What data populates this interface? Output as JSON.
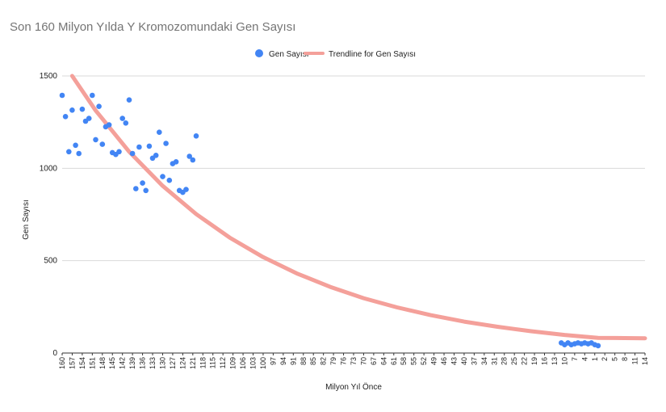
{
  "chart_data": {
    "type": "scatter",
    "title": "Son 160 Milyon Yılda Y Kromozomundaki Gen Sayısı",
    "xlabel": "Milyon Yıl Önce",
    "ylabel": "Gen Sayısı",
    "ylim": [
      0,
      1500
    ],
    "yticks": [
      "0",
      "500",
      "1000",
      "1500"
    ],
    "grid": true,
    "legend_position": "top",
    "x_ticks": [
      "160",
      "157",
      "154",
      "151",
      "148",
      "145",
      "142",
      "139",
      "136",
      "133",
      "130",
      "127",
      "124",
      "121",
      "118",
      "115",
      "112",
      "109",
      "106",
      "103",
      "100",
      "97",
      "94",
      "91",
      "88",
      "85",
      "82",
      "79",
      "76",
      "73",
      "70",
      "67",
      "64",
      "61",
      "58",
      "55",
      "52",
      "49",
      "46",
      "43",
      "40",
      "37",
      "34",
      "31",
      "28",
      "25",
      "22",
      "19",
      "16",
      "13",
      "10",
      "7",
      "4",
      "1",
      "2",
      "5",
      "8",
      "11",
      "14"
    ],
    "series": [
      {
        "name": "Gen Sayısı",
        "color": "#4285f4",
        "points": [
          [
            160,
            1395
          ],
          [
            159,
            1280
          ],
          [
            158,
            1090
          ],
          [
            157,
            1315
          ],
          [
            156,
            1125
          ],
          [
            155,
            1080
          ],
          [
            154,
            1320
          ],
          [
            153,
            1255
          ],
          [
            152,
            1270
          ],
          [
            151,
            1395
          ],
          [
            150,
            1155
          ],
          [
            149,
            1335
          ],
          [
            148,
            1130
          ],
          [
            147,
            1225
          ],
          [
            146,
            1235
          ],
          [
            145,
            1085
          ],
          [
            144,
            1075
          ],
          [
            143,
            1090
          ],
          [
            142,
            1270
          ],
          [
            141,
            1245
          ],
          [
            140,
            1370
          ],
          [
            139,
            1080
          ],
          [
            138,
            890
          ],
          [
            137,
            1115
          ],
          [
            136,
            920
          ],
          [
            135,
            880
          ],
          [
            134,
            1120
          ],
          [
            133,
            1055
          ],
          [
            132,
            1070
          ],
          [
            131,
            1195
          ],
          [
            130,
            955
          ],
          [
            129,
            1135
          ],
          [
            128,
            935
          ],
          [
            127,
            1025
          ],
          [
            126,
            1035
          ],
          [
            125,
            880
          ],
          [
            124,
            870
          ],
          [
            123,
            885
          ],
          [
            122,
            1065
          ],
          [
            121,
            1045
          ],
          [
            120,
            1175
          ],
          [
            11,
            55
          ],
          [
            10,
            45
          ],
          [
            9,
            55
          ],
          [
            8,
            45
          ],
          [
            7,
            50
          ],
          [
            6,
            55
          ],
          [
            5,
            50
          ],
          [
            4,
            55
          ],
          [
            3,
            50
          ],
          [
            2,
            55
          ],
          [
            1,
            45
          ],
          [
            0,
            40
          ]
        ]
      },
      {
        "name": "Trendline for Gen Sayısı",
        "color": "#f4a09a",
        "type": "exponential-trendline",
        "points": [
          [
            157,
            1500
          ],
          [
            150,
            1313
          ],
          [
            140,
            1090
          ],
          [
            130,
            905
          ],
          [
            120,
            752
          ],
          [
            110,
            625
          ],
          [
            100,
            519
          ],
          [
            90,
            431
          ],
          [
            80,
            358
          ],
          [
            70,
            297
          ],
          [
            60,
            247
          ],
          [
            50,
            205
          ],
          [
            40,
            170
          ],
          [
            30,
            142
          ],
          [
            20,
            118
          ],
          [
            10,
            98
          ],
          [
            0,
            82
          ],
          [
            -14,
            80
          ]
        ]
      }
    ]
  }
}
